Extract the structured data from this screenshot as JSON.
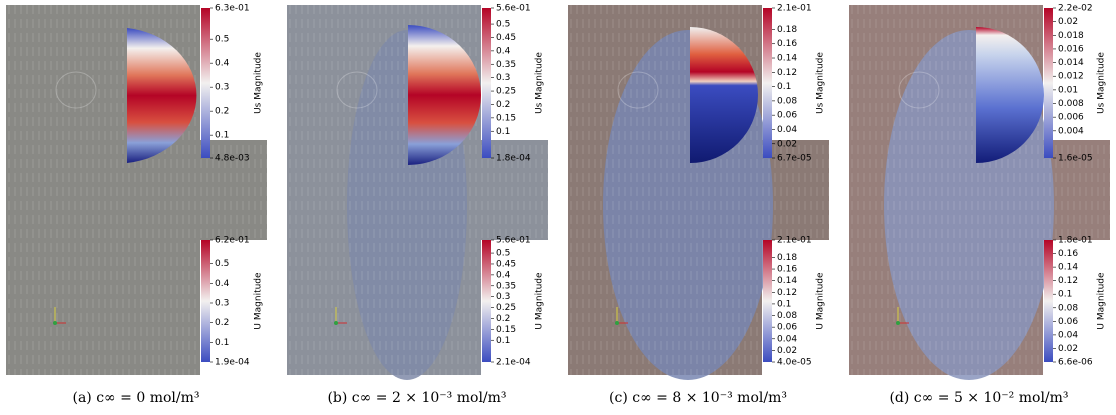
{
  "panels": [
    {
      "caption": "(a) c∞ = 0 mol/m³",
      "top_colorbar": {
        "title": "Us Magnitude",
        "max": {
          "value": 0.63,
          "label": "6.3e-01"
        },
        "min": {
          "value": 0.0048,
          "label": "4.8e-03"
        },
        "ticks": [
          0.5,
          0.4,
          0.3,
          0.2,
          0.1
        ]
      },
      "bottom_colorbar": {
        "title": "U Magnitude",
        "max": {
          "value": 0.62,
          "label": "6.2e-01"
        },
        "min": {
          "value": 0.00019,
          "label": "1.9e-04"
        },
        "ticks": [
          0.5,
          0.4,
          0.3,
          0.2,
          0.1
        ]
      }
    },
    {
      "caption": "(b) c∞ = 2 × 10⁻³ mol/m³",
      "top_colorbar": {
        "title": "Us Magnitude",
        "max": {
          "value": 0.56,
          "label": "5.6e-01"
        },
        "min": {
          "value": 0.00018,
          "label": "1.8e-04"
        },
        "ticks": [
          0.5,
          0.45,
          0.4,
          0.35,
          0.3,
          0.25,
          0.2,
          0.15,
          0.1
        ]
      },
      "bottom_colorbar": {
        "title": "U Magnitude",
        "max": {
          "value": 0.56,
          "label": "5.6e-01"
        },
        "min": {
          "value": 0.00021,
          "label": "2.1e-04"
        },
        "ticks": [
          0.5,
          0.45,
          0.4,
          0.35,
          0.3,
          0.25,
          0.2,
          0.15,
          0.1
        ]
      }
    },
    {
      "caption": "(c) c∞ = 8 × 10⁻³ mol/m³",
      "top_colorbar": {
        "title": "Us Magnitude",
        "max": {
          "value": 0.21,
          "label": "2.1e-01"
        },
        "min": {
          "value": 6.7e-05,
          "label": "6.7e-05"
        },
        "ticks": [
          0.18,
          0.16,
          0.14,
          0.12,
          0.1,
          0.08,
          0.06,
          0.04,
          0.02
        ]
      },
      "bottom_colorbar": {
        "title": "U Magnitude",
        "max": {
          "value": 0.21,
          "label": "2.1e-01"
        },
        "min": {
          "value": 4e-05,
          "label": "4.0e-05"
        },
        "ticks": [
          0.18,
          0.16,
          0.14,
          0.12,
          0.1,
          0.08,
          0.06,
          0.04,
          0.02
        ]
      }
    },
    {
      "caption": "(d) c∞ = 5 × 10⁻² mol/m³",
      "top_colorbar": {
        "title": "Us Magnitude",
        "max": {
          "value": 0.022,
          "label": "2.2e-02"
        },
        "min": {
          "value": 1.6e-05,
          "label": "1.6e-05"
        },
        "ticks": [
          0.02,
          0.018,
          0.016,
          0.014,
          0.012,
          0.01,
          0.008,
          0.006,
          0.004
        ]
      },
      "bottom_colorbar": {
        "title": "U Magnitude",
        "max": {
          "value": 0.18,
          "label": "1.8e-01"
        },
        "min": {
          "value": 6.6e-06,
          "label": "6.6e-06"
        },
        "ticks": [
          0.16,
          0.14,
          0.12,
          0.1,
          0.08,
          0.06,
          0.04,
          0.02
        ]
      }
    }
  ]
}
